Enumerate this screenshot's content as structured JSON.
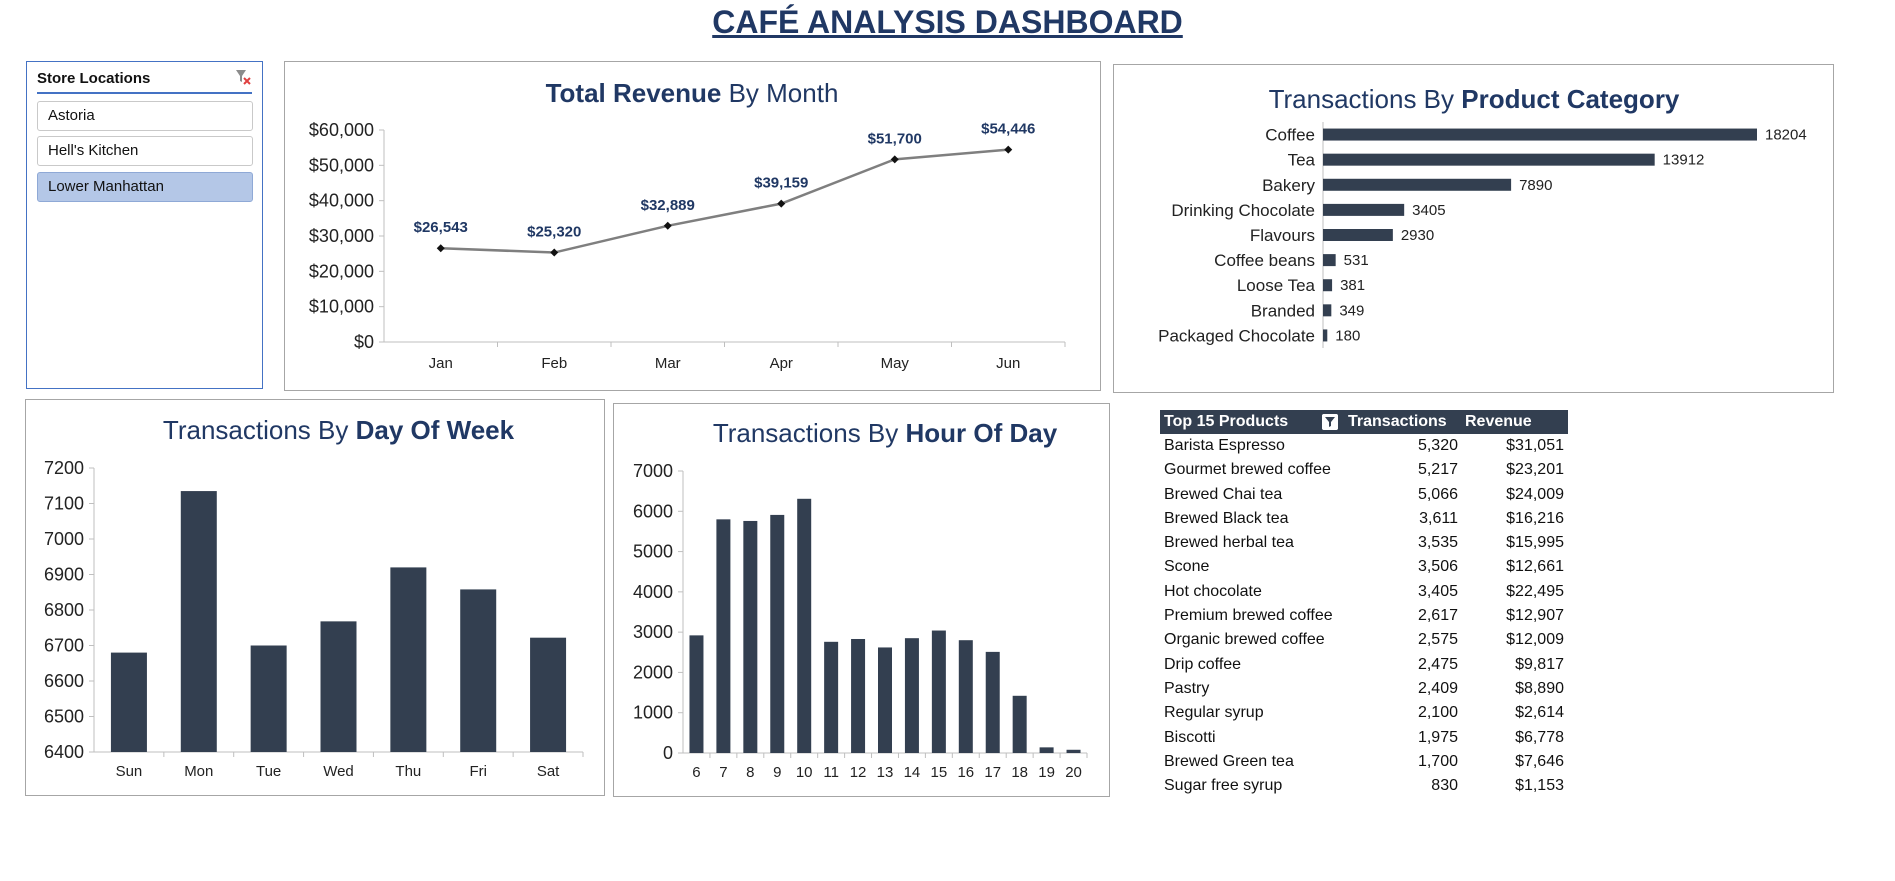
{
  "page": {
    "title": "CAFÉ ANALYSIS DASHBOARD"
  },
  "slicer": {
    "title": "Store Locations",
    "items": [
      {
        "label": "Astoria",
        "selected": false
      },
      {
        "label": "Hell's Kitchen",
        "selected": false
      },
      {
        "label": "Lower Manhattan",
        "selected": true
      }
    ]
  },
  "colors": {
    "bar": "#333f50",
    "line": "#7f7f7f",
    "title": "#203864",
    "accent": "#4472c4",
    "slicer_selected": "#b4c7e7"
  },
  "chart_data": [
    {
      "id": "revenue",
      "type": "line",
      "title_bold": "Total Revenue",
      "title_rest": " By Month",
      "categories": [
        "Jan",
        "Feb",
        "Mar",
        "Apr",
        "May",
        "Jun"
      ],
      "values": [
        26543,
        25320,
        32889,
        39159,
        51700,
        54446
      ],
      "data_labels": [
        "$26,543",
        "$25,320",
        "$32,889",
        "$39,159",
        "$51,700",
        "$54,446"
      ],
      "ylim": [
        0,
        60000
      ],
      "yticks": [
        "$0",
        "$10,000",
        "$20,000",
        "$30,000",
        "$40,000",
        "$50,000",
        "$60,000"
      ],
      "grid": false
    },
    {
      "id": "category",
      "type": "bar",
      "orientation": "horizontal",
      "title_rest": "Transactions By ",
      "title_bold": "Product Category",
      "categories": [
        "Coffee",
        "Tea",
        "Bakery",
        "Drinking Chocolate",
        "Flavours",
        "Coffee beans",
        "Loose Tea",
        "Branded",
        "Packaged Chocolate"
      ],
      "values": [
        18204,
        13912,
        7890,
        3405,
        2930,
        531,
        381,
        349,
        180
      ],
      "data_labels": [
        "18204",
        "13912",
        "7890",
        "3405",
        "2930",
        "531",
        "381",
        "349",
        "180"
      ]
    },
    {
      "id": "dow",
      "type": "bar",
      "title_rest": "Transactions By ",
      "title_bold": "Day Of Week",
      "categories": [
        "Sun",
        "Mon",
        "Tue",
        "Wed",
        "Thu",
        "Fri",
        "Sat"
      ],
      "values": [
        6680,
        7135,
        6700,
        6768,
        6920,
        6858,
        6722
      ],
      "ylim": [
        6400,
        7200
      ],
      "yticks": [
        "6400",
        "6500",
        "6600",
        "6700",
        "6800",
        "6900",
        "7000",
        "7100",
        "7200"
      ]
    },
    {
      "id": "hour",
      "type": "bar",
      "title_rest": "Transactions By ",
      "title_bold": "Hour Of Day",
      "categories": [
        "6",
        "7",
        "8",
        "9",
        "10",
        "11",
        "12",
        "13",
        "14",
        "15",
        "16",
        "17",
        "18",
        "19",
        "20"
      ],
      "values": [
        2920,
        5800,
        5760,
        5910,
        6310,
        2760,
        2830,
        2620,
        2850,
        3040,
        2800,
        2510,
        1420,
        140,
        80
      ],
      "ylim": [
        0,
        7000
      ],
      "yticks": [
        "0",
        "1000",
        "2000",
        "3000",
        "4000",
        "5000",
        "6000",
        "7000"
      ]
    }
  ],
  "table": {
    "headers": [
      "Top 15 Products",
      "Transactions",
      "Revenue"
    ],
    "rows": [
      [
        "Barista Espresso",
        "5,320",
        "$31,051"
      ],
      [
        "Gourmet brewed coffee",
        "5,217",
        "$23,201"
      ],
      [
        "Brewed Chai tea",
        "5,066",
        "$24,009"
      ],
      [
        "Brewed Black tea",
        "3,611",
        "$16,216"
      ],
      [
        "Brewed herbal tea",
        "3,535",
        "$15,995"
      ],
      [
        "Scone",
        "3,506",
        "$12,661"
      ],
      [
        "Hot chocolate",
        "3,405",
        "$22,495"
      ],
      [
        "Premium brewed coffee",
        "2,617",
        "$12,907"
      ],
      [
        "Organic brewed coffee",
        "2,575",
        "$12,009"
      ],
      [
        "Drip coffee",
        "2,475",
        "$9,817"
      ],
      [
        "Pastry",
        "2,409",
        "$8,890"
      ],
      [
        "Regular syrup",
        "2,100",
        "$2,614"
      ],
      [
        "Biscotti",
        "1,975",
        "$6,778"
      ],
      [
        "Brewed Green tea",
        "1,700",
        "$7,646"
      ],
      [
        "Sugar free syrup",
        "830",
        "$1,153"
      ]
    ]
  },
  "icons": {
    "slicer_clear": "clear-filter-icon",
    "table_filter": "filter-icon"
  }
}
